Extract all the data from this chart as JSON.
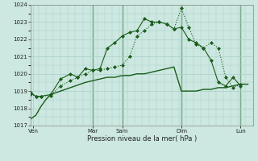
{
  "background_color": "#cce8e0",
  "grid_color": "#a8cfc8",
  "line_color": "#1a5c1a",
  "xlabel": "Pression niveau de la mer( hPa )",
  "ylim": [
    1017,
    1024
  ],
  "xlim": [
    0,
    180
  ],
  "yticks": [
    1017,
    1018,
    1019,
    1020,
    1021,
    1022,
    1023,
    1024
  ],
  "day_labels": [
    "Ven",
    "",
    "Mar",
    "Sam",
    "",
    "Dim",
    "",
    "Lun"
  ],
  "day_positions": [
    2,
    24,
    50,
    74,
    96,
    122,
    146,
    170
  ],
  "vline_positions": [
    50,
    74,
    122,
    170
  ],
  "line1_x": [
    0,
    4,
    8,
    12,
    16,
    20,
    24,
    28,
    32,
    36,
    40,
    44,
    50,
    56,
    62,
    68,
    74,
    80,
    86,
    92,
    98,
    104,
    110,
    116,
    122,
    128,
    134,
    140,
    146,
    152,
    158,
    164,
    170,
    176
  ],
  "line1_y": [
    1017.4,
    1017.6,
    1018.1,
    1018.5,
    1018.8,
    1018.9,
    1019.0,
    1019.1,
    1019.2,
    1019.3,
    1019.4,
    1019.5,
    1019.6,
    1019.7,
    1019.8,
    1019.8,
    1019.9,
    1019.9,
    1020.0,
    1020.0,
    1020.1,
    1020.2,
    1020.3,
    1020.4,
    1019.0,
    1019.0,
    1019.0,
    1019.1,
    1019.1,
    1019.2,
    1019.2,
    1019.3,
    1019.4,
    1019.4
  ],
  "line2_x": [
    0,
    4,
    8,
    16,
    24,
    32,
    38,
    44,
    50,
    56,
    62,
    68,
    74,
    80,
    86,
    92,
    98,
    104,
    110,
    116,
    122,
    128,
    134,
    140,
    146,
    152,
    158,
    164,
    170
  ],
  "line2_y": [
    1018.8,
    1018.7,
    1018.7,
    1018.75,
    1019.3,
    1019.6,
    1019.8,
    1020.0,
    1020.2,
    1020.2,
    1020.3,
    1020.4,
    1020.5,
    1021.0,
    1022.2,
    1022.5,
    1022.9,
    1023.0,
    1022.9,
    1022.6,
    1023.8,
    1022.7,
    1021.7,
    1021.5,
    1021.8,
    1021.5,
    1019.8,
    1019.2,
    1019.4
  ],
  "line3_x": [
    0,
    4,
    8,
    16,
    24,
    32,
    38,
    44,
    50,
    56,
    62,
    68,
    74,
    80,
    86,
    92,
    98,
    104,
    110,
    116,
    122,
    128,
    134,
    140,
    146,
    152,
    158,
    164,
    170
  ],
  "line3_y": [
    1018.9,
    1018.7,
    1018.7,
    1018.8,
    1019.7,
    1020.0,
    1019.8,
    1020.3,
    1020.2,
    1020.3,
    1021.5,
    1021.8,
    1022.2,
    1022.4,
    1022.5,
    1023.2,
    1023.0,
    1023.0,
    1022.9,
    1022.6,
    1022.7,
    1022.0,
    1021.8,
    1021.5,
    1020.8,
    1019.5,
    1019.3,
    1019.8,
    1019.3
  ]
}
